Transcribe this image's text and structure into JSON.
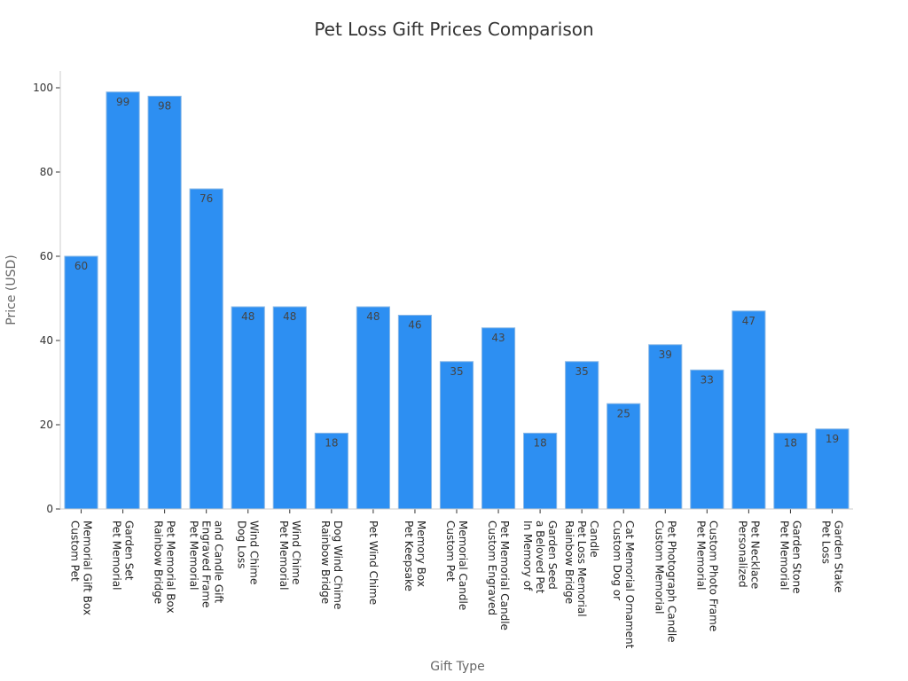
{
  "chart_data": {
    "type": "bar",
    "title": "Pet Loss Gift Prices Comparison",
    "xlabel": "Gift Type",
    "ylabel": "Price (USD)",
    "ylim": [
      0,
      104
    ],
    "yticks": [
      0,
      20,
      40,
      60,
      80,
      100
    ],
    "grid": false,
    "categories": [
      [
        "Custom Pet",
        "Memorial Gift Box"
      ],
      [
        "Pet Memorial",
        "Garden Set"
      ],
      [
        "Rainbow Bridge",
        "Pet Memorial Box"
      ],
      [
        "Pet Memorial",
        "Engraved Frame",
        "and Candle Gift"
      ],
      [
        "Dog Loss",
        "Wind Chime"
      ],
      [
        "Pet Memorial",
        "Wind Chime"
      ],
      [
        "Rainbow Bridge",
        "Dog Wind Chime"
      ],
      [
        "Pet Wind Chime"
      ],
      [
        "Pet Keepsake",
        "Memory Box"
      ],
      [
        "Custom Pet",
        "Memorial Candle"
      ],
      [
        "Custom Engraved",
        "Pet Memorial Candle"
      ],
      [
        "In Memory of",
        "a Beloved Pet",
        "Garden Seed"
      ],
      [
        "Rainbow Bridge",
        "Pet Loss Memorial",
        "Candle"
      ],
      [
        "Custom Dog or",
        "Cat Memorial Ornament"
      ],
      [
        "Custom Memorial",
        "Pet Photograph Candle"
      ],
      [
        "Pet Memorial",
        "Custom Photo Frame"
      ],
      [
        "Personalized",
        "Pet Necklace"
      ],
      [
        "Pet Memorial",
        "Garden Stone"
      ],
      [
        "Pet Loss",
        "Garden Stake"
      ]
    ],
    "values": [
      60,
      99,
      98,
      76,
      48,
      48,
      18,
      48,
      46,
      35,
      43,
      18,
      35,
      25,
      39,
      33,
      47,
      18,
      19
    ],
    "colors": {
      "bar": "#2d8ff2",
      "bar_edge": "#8ab8e6",
      "axis": "#cccccc",
      "tick": "#333333"
    }
  }
}
